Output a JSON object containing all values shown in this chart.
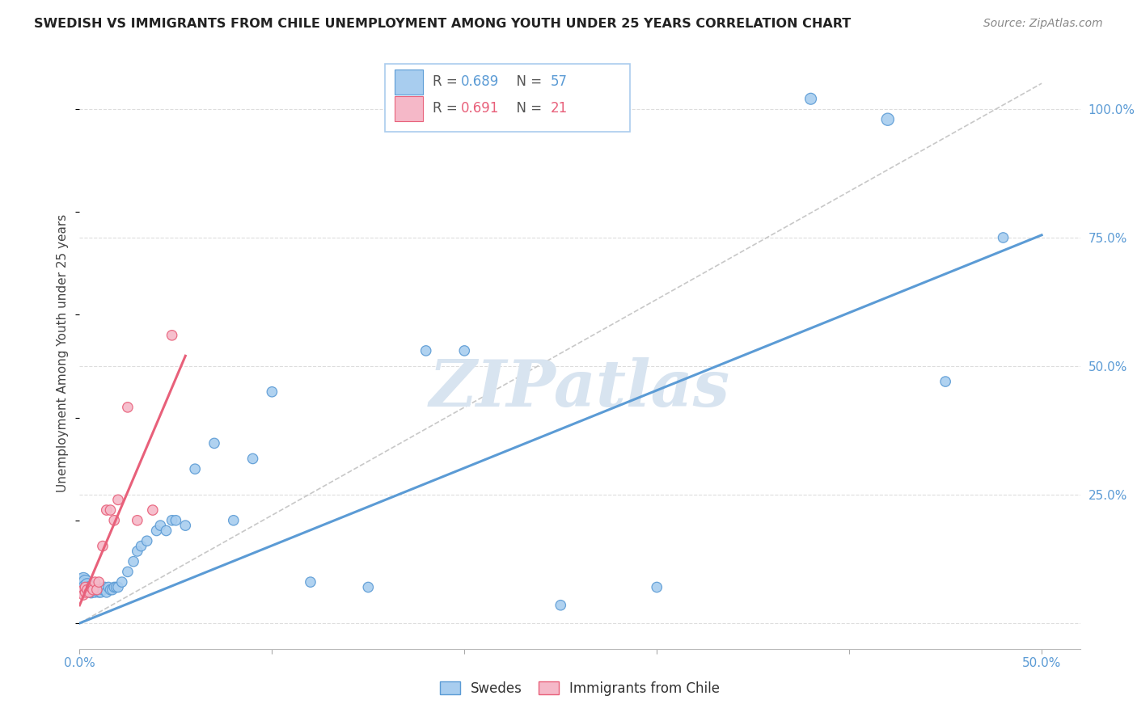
{
  "title": "SWEDISH VS IMMIGRANTS FROM CHILE UNEMPLOYMENT AMONG YOUTH UNDER 25 YEARS CORRELATION CHART",
  "source": "Source: ZipAtlas.com",
  "ylabel": "Unemployment Among Youth under 25 years",
  "xlim": [
    0.0,
    0.52
  ],
  "ylim": [
    -0.05,
    1.1
  ],
  "xticks": [
    0.0,
    0.1,
    0.2,
    0.3,
    0.4,
    0.5
  ],
  "xticklabels": [
    "0.0%",
    "",
    "",
    "",
    "",
    "50.0%"
  ],
  "yticks_right": [
    0.0,
    0.25,
    0.5,
    0.75,
    1.0
  ],
  "yticklabels_right": [
    "",
    "25.0%",
    "50.0%",
    "75.0%",
    "100.0%"
  ],
  "blue_R": 0.689,
  "blue_N": 57,
  "pink_R": 0.691,
  "pink_N": 21,
  "blue_color": "#A8CDEF",
  "pink_color": "#F5B8C8",
  "blue_edge_color": "#5B9BD5",
  "pink_edge_color": "#E8607A",
  "ref_line_color": "#C8C8C8",
  "background_color": "#FFFFFF",
  "watermark_color": "#D8E4F0",
  "blue_trend": [
    0.0,
    0.5,
    0.0,
    0.755
  ],
  "pink_trend": [
    0.0,
    0.055,
    0.035,
    0.52
  ],
  "ref_line": [
    0.0,
    0.5,
    0.0,
    1.05
  ],
  "blue_x": [
    0.001,
    0.002,
    0.002,
    0.003,
    0.003,
    0.004,
    0.004,
    0.005,
    0.005,
    0.006,
    0.006,
    0.007,
    0.007,
    0.008,
    0.008,
    0.009,
    0.009,
    0.01,
    0.01,
    0.011,
    0.011,
    0.012,
    0.013,
    0.014,
    0.015,
    0.016,
    0.017,
    0.018,
    0.019,
    0.02,
    0.022,
    0.025,
    0.028,
    0.03,
    0.032,
    0.035,
    0.04,
    0.042,
    0.045,
    0.048,
    0.05,
    0.055,
    0.06,
    0.07,
    0.08,
    0.09,
    0.1,
    0.12,
    0.15,
    0.18,
    0.2,
    0.25,
    0.3,
    0.38,
    0.42,
    0.45,
    0.48
  ],
  "blue_y": [
    0.08,
    0.085,
    0.075,
    0.08,
    0.07,
    0.075,
    0.065,
    0.07,
    0.065,
    0.07,
    0.06,
    0.065,
    0.065,
    0.065,
    0.06,
    0.065,
    0.07,
    0.065,
    0.06,
    0.065,
    0.06,
    0.065,
    0.07,
    0.06,
    0.07,
    0.065,
    0.065,
    0.07,
    0.07,
    0.07,
    0.08,
    0.1,
    0.12,
    0.14,
    0.15,
    0.16,
    0.18,
    0.19,
    0.18,
    0.2,
    0.2,
    0.19,
    0.3,
    0.35,
    0.2,
    0.32,
    0.45,
    0.08,
    0.07,
    0.53,
    0.53,
    0.035,
    0.07,
    1.02,
    0.98,
    0.47,
    0.75
  ],
  "blue_sizes": [
    200,
    150,
    150,
    150,
    150,
    120,
    120,
    100,
    100,
    100,
    100,
    80,
    80,
    80,
    80,
    80,
    80,
    80,
    80,
    80,
    80,
    80,
    80,
    80,
    80,
    80,
    80,
    80,
    80,
    80,
    80,
    80,
    80,
    80,
    80,
    80,
    80,
    80,
    80,
    80,
    80,
    80,
    80,
    80,
    80,
    80,
    80,
    80,
    80,
    80,
    80,
    80,
    80,
    100,
    120,
    80,
    80
  ],
  "pink_x": [
    0.001,
    0.002,
    0.002,
    0.003,
    0.003,
    0.004,
    0.005,
    0.006,
    0.007,
    0.008,
    0.009,
    0.01,
    0.012,
    0.014,
    0.016,
    0.018,
    0.02,
    0.025,
    0.03,
    0.038,
    0.048
  ],
  "pink_y": [
    0.06,
    0.065,
    0.055,
    0.06,
    0.07,
    0.065,
    0.06,
    0.07,
    0.065,
    0.08,
    0.065,
    0.08,
    0.15,
    0.22,
    0.22,
    0.2,
    0.24,
    0.42,
    0.2,
    0.22,
    0.56
  ],
  "pink_sizes": [
    80,
    80,
    80,
    80,
    80,
    80,
    80,
    80,
    80,
    80,
    80,
    80,
    80,
    80,
    80,
    80,
    80,
    80,
    80,
    80,
    80
  ]
}
